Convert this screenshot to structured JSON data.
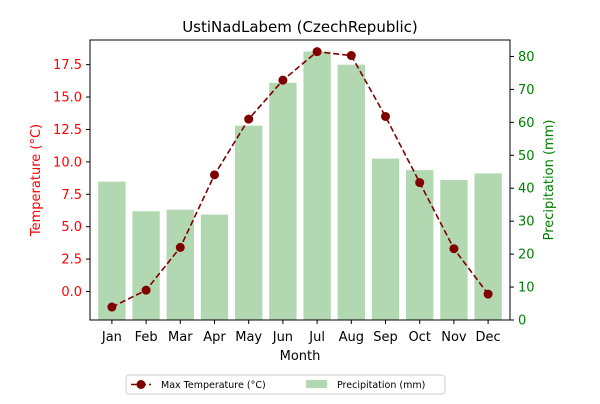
{
  "chart_data": {
    "type": "bar+line",
    "title": "UstiNadLabem (CzechRepublic)",
    "xlabel": "Month",
    "categories": [
      "Jan",
      "Feb",
      "Mar",
      "Apr",
      "May",
      "Jun",
      "Jul",
      "Aug",
      "Sep",
      "Oct",
      "Nov",
      "Dec"
    ],
    "y_left": {
      "label": "Temperature (°C)",
      "color": "#ff0000",
      "ylim": [
        -2.2,
        19.4
      ],
      "ticks": [
        0.0,
        2.5,
        5.0,
        7.5,
        10.0,
        12.5,
        15.0,
        17.5
      ],
      "tick_labels": [
        "0.0",
        "2.5",
        "5.0",
        "7.5",
        "10.0",
        "12.5",
        "15.0",
        "17.5"
      ]
    },
    "y_right": {
      "label": "Precipitation (mm)",
      "color": "#008000",
      "ylim": [
        0,
        85
      ],
      "ticks": [
        0,
        10,
        20,
        30,
        40,
        50,
        60,
        70,
        80
      ],
      "tick_labels": [
        "0",
        "10",
        "20",
        "30",
        "40",
        "50",
        "60",
        "70",
        "80"
      ]
    },
    "series": [
      {
        "name": "Max Temperature (°C)",
        "type": "line",
        "axis": "left",
        "color": "#800000",
        "linestyle": "dashed",
        "marker": "circle",
        "values": [
          -1.2,
          0.1,
          3.4,
          9.0,
          13.3,
          16.3,
          18.5,
          18.2,
          13.5,
          8.4,
          3.3,
          -0.2
        ]
      },
      {
        "name": "Precipitation (mm)",
        "type": "bar",
        "axis": "right",
        "color": "#b2d8b2",
        "values": [
          42,
          33,
          33.5,
          32,
          59,
          72,
          81.5,
          77.5,
          49,
          45.5,
          42.5,
          44.5
        ]
      }
    ],
    "legend": {
      "placement": "bottom-center",
      "columns": 2
    },
    "grid": false
  }
}
